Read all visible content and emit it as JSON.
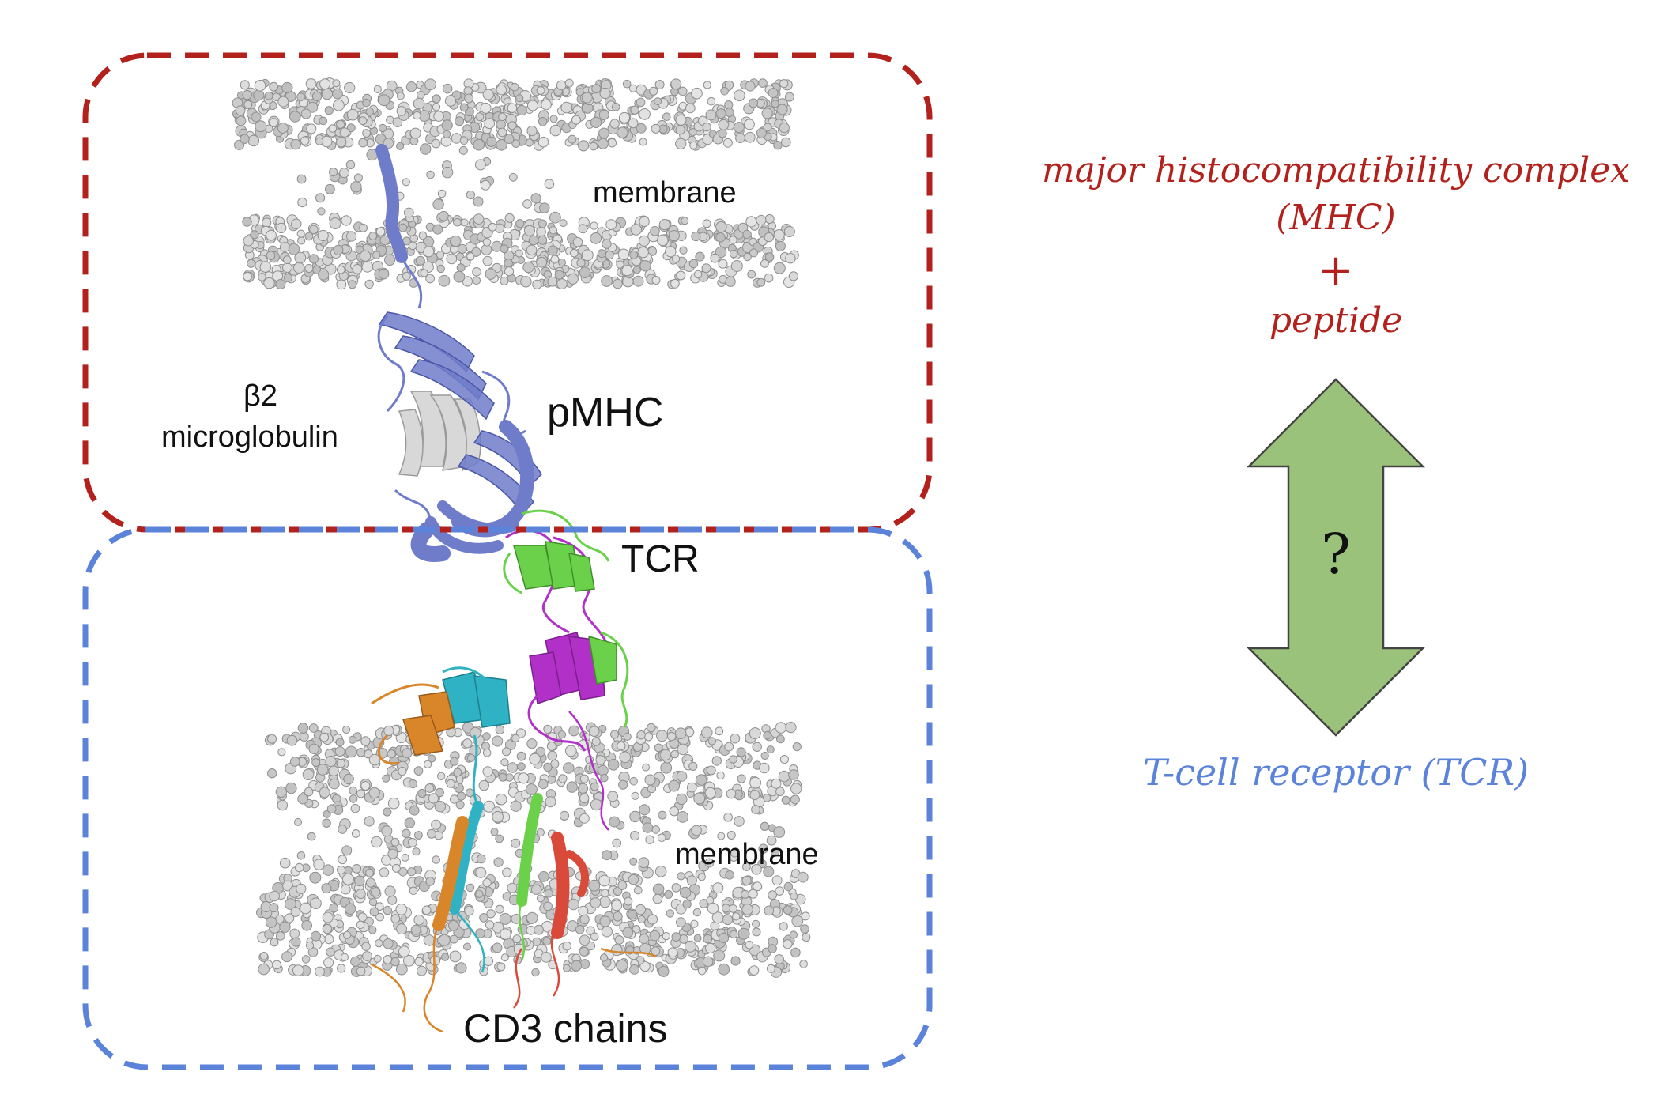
{
  "structure": {
    "labels": {
      "membrane_top": "membrane",
      "beta2": "β2",
      "microglobulin": "microglobulin",
      "pmhc": "pMHC",
      "tcr": "TCR",
      "membrane_bottom": "membrane",
      "cd3": "CD3 chains"
    }
  },
  "side_panel": {
    "mhc_line1": "major histocompatibility complex",
    "mhc_line2": "(MHC)",
    "plus": "+",
    "peptide": "peptide",
    "question": "?",
    "tcr_label": "T-cell receptor (TCR)"
  },
  "colors": {
    "mhc_red": "#b2211b",
    "tcr_blue": "#5b83d9",
    "arrow_fill": "#9bc27a",
    "arrow_stroke": "#444444",
    "mhc_protein": "#6f7cc9",
    "tcr_green": "#6bd14a",
    "tcr_magenta": "#b030c8",
    "cd3_cyan": "#2fb3c4",
    "cd3_orange": "#d9852a",
    "cd3_red": "#d94a3a",
    "beta2_gray": "#d8d8d8",
    "lipid_gray": "#c6c6c6"
  }
}
